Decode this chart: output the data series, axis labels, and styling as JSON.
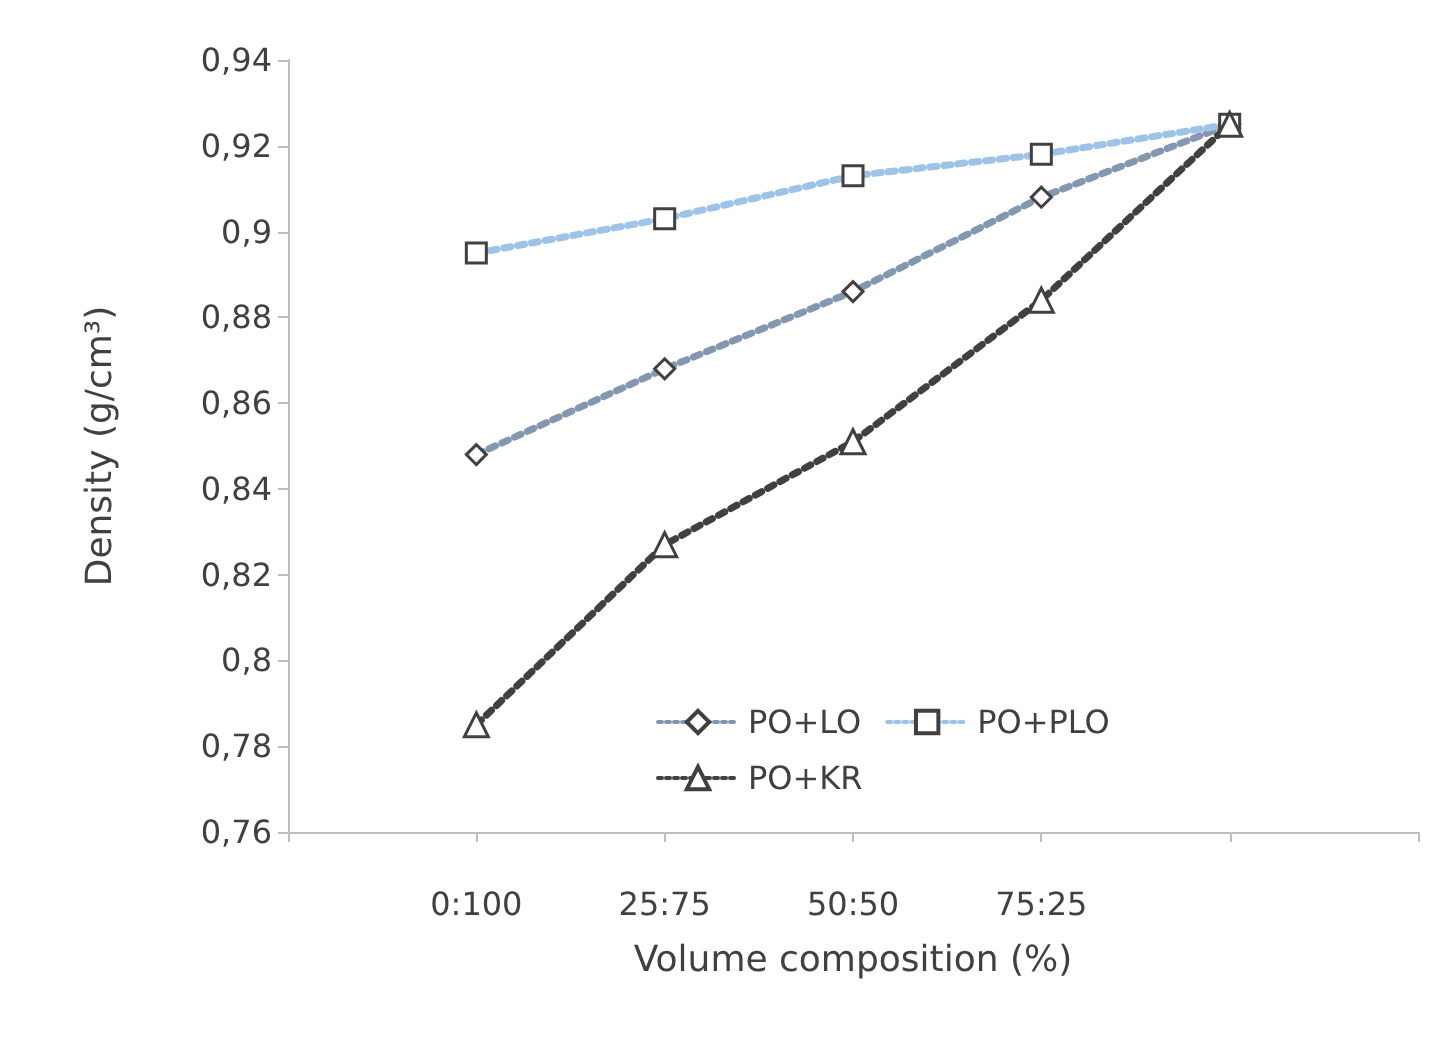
{
  "chart_data": {
    "type": "line",
    "xlabel": "Volume composition (%)",
    "ylabel": "Density (g/cm³)",
    "categories": [
      null,
      "0:100",
      "25:75",
      "50:50",
      "75:25",
      null,
      null
    ],
    "series": [
      {
        "name": "PO+LO",
        "color": "#8497b0",
        "marker": "diamond",
        "values": [
          null,
          0.848,
          0.868,
          0.886,
          0.908,
          0.925,
          null
        ]
      },
      {
        "name": "PO+PLO",
        "color": "#9dc3e6",
        "marker": "square",
        "values": [
          null,
          0.895,
          0.903,
          0.913,
          0.918,
          0.925,
          null
        ]
      },
      {
        "name": "PO+KR",
        "color": "#404040",
        "marker": "triangle",
        "values": [
          null,
          0.785,
          0.827,
          0.851,
          0.884,
          0.925,
          null
        ]
      }
    ],
    "ylim": [
      0.76,
      0.94
    ],
    "yticks": [
      {
        "value": 0.76,
        "label": "0,76"
      },
      {
        "value": 0.78,
        "label": "0,78"
      },
      {
        "value": 0.8,
        "label": "0,8"
      },
      {
        "value": 0.82,
        "label": "0,82"
      },
      {
        "value": 0.84,
        "label": "0,84"
      },
      {
        "value": 0.86,
        "label": "0,86"
      },
      {
        "value": 0.88,
        "label": "0,88"
      },
      {
        "value": 0.9,
        "label": "0,9"
      },
      {
        "value": 0.92,
        "label": "0,92"
      },
      {
        "value": 0.94,
        "label": "0,94"
      }
    ],
    "grid": false,
    "legend": "bottom right",
    "line_style": "dotted"
  }
}
